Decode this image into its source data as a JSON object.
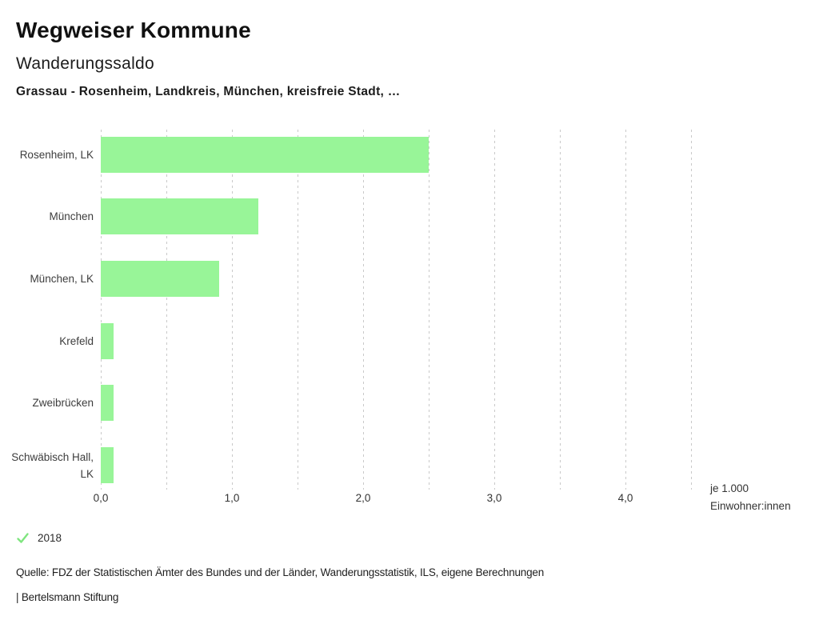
{
  "header": {
    "title": "Wegweiser Kommune",
    "subtitle": "Wanderungssaldo",
    "selection": "Grassau - Rosenheim, Landkreis, München, kreisfreie Stadt, …"
  },
  "chart_data": {
    "type": "bar",
    "orientation": "horizontal",
    "title": "Wanderungssaldo",
    "categories": [
      "Rosenheim, LK",
      "München",
      "München, LK",
      "Krefeld",
      "Zweibrücken",
      "Schwäbisch Hall, LK"
    ],
    "series": [
      {
        "name": "2018",
        "values": [
          2.5,
          1.2,
          0.9,
          0.1,
          0.1,
          0.1
        ]
      }
    ],
    "xlim": [
      0,
      4.5
    ],
    "gridline_step": 0.5,
    "grid": true,
    "x_tick_values": [
      0,
      1,
      2,
      3,
      4
    ],
    "x_tick_labels": [
      "0,0",
      "1,0",
      "2,0",
      "3,0",
      "4,0"
    ],
    "unit_label_lines": [
      "je 1.000",
      "Einwohner:innen"
    ],
    "bar_color": "#98f598",
    "grid_color": "#c9c9c9",
    "legend_position": "bottom-left"
  },
  "legend": {
    "year": "2018",
    "check_icon": "checkmark",
    "check_icon_color": "#7fe57f"
  },
  "footer": {
    "source": "Quelle: FDZ der Statistischen Ämter des Bundes und der Länder, Wanderungsstatistik, ILS, eigene Berechnungen",
    "attribution": "| Bertelsmann Stiftung"
  }
}
